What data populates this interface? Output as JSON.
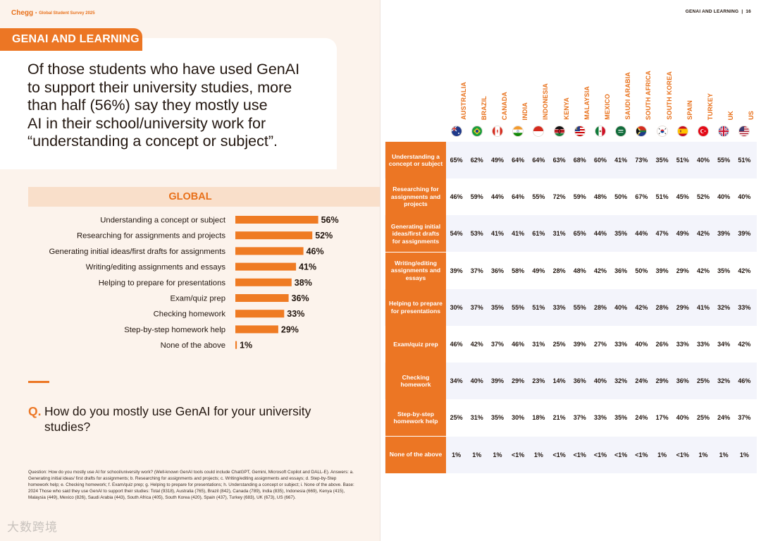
{
  "brand": {
    "name": "Chegg",
    "subtitle": "Global Student Survey 2025"
  },
  "page_header": {
    "section": "GENAI AND LEARNING",
    "page_number": "16"
  },
  "topic_tab": "GENAI AND LEARNING",
  "headline": "Of those students who have used GenAI\nto support their university studies, more\nthan half (56%) say they mostly use\nAI in their school/university work for\n“understanding a concept or subject”.",
  "global_header": "GLOBAL",
  "question": {
    "mark": "Q.",
    "text": "How do you mostly use GenAI for your university studies?"
  },
  "footnote": "Question: How do you mostly use AI for school/university work? (Well-known GenAI tools could include ChatGPT, Gemini, Microsoft Copilot and DALL-E). Answers: a. Generating initial ideas/ first drafts for assignments; b. Researching for assignments and projects; c. Writing/editing assignments and essays; d. Step-by-Step homework help; e. Checking homework; f. Exam/quiz prep; g. Helping to prepare for presentations; h. Understanding a concept or subject; i. None of the above. Base: 2024 Those who said they use GenAI to support their studies: Total (9318), Australia (765), Brazil (842), Canada (789), India (835), Indonesia (669), Kenya (415), Malaysia (449), Mexico (826), Saudi Arabia (443), South Africa (405), South Korea (420), Spain (437), Turkey (683), UK (673), US (667).",
  "watermark": "大数跨境",
  "colors": {
    "accent": "#ec7624",
    "accent_text": "#e8701a",
    "bar": "#ef7b23",
    "panel": "#fcf3ec",
    "band": "#f9dfca",
    "row_alt": "#f3f4fb",
    "text": "#22160f"
  },
  "chart_data": [
    {
      "type": "bar",
      "orientation": "horizontal",
      "title": "GLOBAL",
      "categories": [
        "Understanding a concept or subject",
        "Researching for assignments and projects",
        "Generating initial ideas/first drafts for assignments",
        "Writing/editing assignments and essays",
        "Helping to prepare for presentations",
        "Exam/quiz prep",
        "Checking homework",
        "Step-by-step homework help",
        "None of the above"
      ],
      "values": [
        56,
        52,
        46,
        41,
        38,
        36,
        33,
        29,
        1
      ],
      "value_labels": [
        "56%",
        "52%",
        "46%",
        "41%",
        "38%",
        "36%",
        "33%",
        "29%",
        "1%"
      ],
      "unit": "%",
      "xlim": [
        0,
        100
      ]
    },
    {
      "type": "table",
      "columns": [
        "AUSTRALIA",
        "BRAZIL",
        "CANADA",
        "INDIA",
        "INDONESIA",
        "KENYA",
        "MALAYSIA",
        "MEXICO",
        "SAUDI ARABIA",
        "SOUTH AFRICA",
        "SOUTH KOREA",
        "SPAIN",
        "TURKEY",
        "UK",
        "US"
      ],
      "flags": [
        "au",
        "br",
        "ca",
        "in",
        "id",
        "ke",
        "my",
        "mx",
        "sa",
        "za",
        "kr",
        "es",
        "tr",
        "uk",
        "us"
      ],
      "rows": [
        {
          "label": "Understanding a concept or subject",
          "values": [
            "65%",
            "62%",
            "49%",
            "64%",
            "64%",
            "63%",
            "68%",
            "60%",
            "41%",
            "73%",
            "35%",
            "51%",
            "40%",
            "55%",
            "51%"
          ]
        },
        {
          "label": "Researching for assignments and projects",
          "values": [
            "46%",
            "59%",
            "44%",
            "64%",
            "55%",
            "72%",
            "59%",
            "48%",
            "50%",
            "67%",
            "51%",
            "45%",
            "52%",
            "40%",
            "40%"
          ]
        },
        {
          "label": "Generating initial ideas/first drafts for assignments",
          "values": [
            "54%",
            "53%",
            "41%",
            "41%",
            "61%",
            "31%",
            "65%",
            "44%",
            "35%",
            "44%",
            "47%",
            "49%",
            "42%",
            "39%",
            "39%"
          ]
        },
        {
          "label": "Writing/editing assignments and essays",
          "values": [
            "39%",
            "37%",
            "36%",
            "58%",
            "49%",
            "28%",
            "48%",
            "42%",
            "36%",
            "50%",
            "39%",
            "29%",
            "42%",
            "35%",
            "42%"
          ]
        },
        {
          "label": "Helping to prepare for presentations",
          "values": [
            "30%",
            "37%",
            "35%",
            "55%",
            "51%",
            "33%",
            "55%",
            "28%",
            "40%",
            "42%",
            "28%",
            "29%",
            "41%",
            "32%",
            "33%"
          ]
        },
        {
          "label": "Exam/quiz prep",
          "values": [
            "46%",
            "42%",
            "37%",
            "46%",
            "31%",
            "25%",
            "39%",
            "27%",
            "33%",
            "40%",
            "26%",
            "33%",
            "33%",
            "34%",
            "42%"
          ]
        },
        {
          "label": "Checking homework",
          "values": [
            "34%",
            "40%",
            "39%",
            "29%",
            "23%",
            "14%",
            "36%",
            "40%",
            "32%",
            "24%",
            "29%",
            "36%",
            "25%",
            "32%",
            "46%"
          ]
        },
        {
          "label": "Step-by-step homework help",
          "values": [
            "25%",
            "31%",
            "35%",
            "30%",
            "18%",
            "21%",
            "37%",
            "33%",
            "35%",
            "24%",
            "17%",
            "40%",
            "25%",
            "24%",
            "37%"
          ]
        },
        {
          "label": "None of the above",
          "values": [
            "1%",
            "1%",
            "1%",
            "<1%",
            "1%",
            "<1%",
            "<1%",
            "<1%",
            "<1%",
            "<1%",
            "1%",
            "<1%",
            "1%",
            "1%",
            "1%"
          ]
        }
      ]
    }
  ]
}
